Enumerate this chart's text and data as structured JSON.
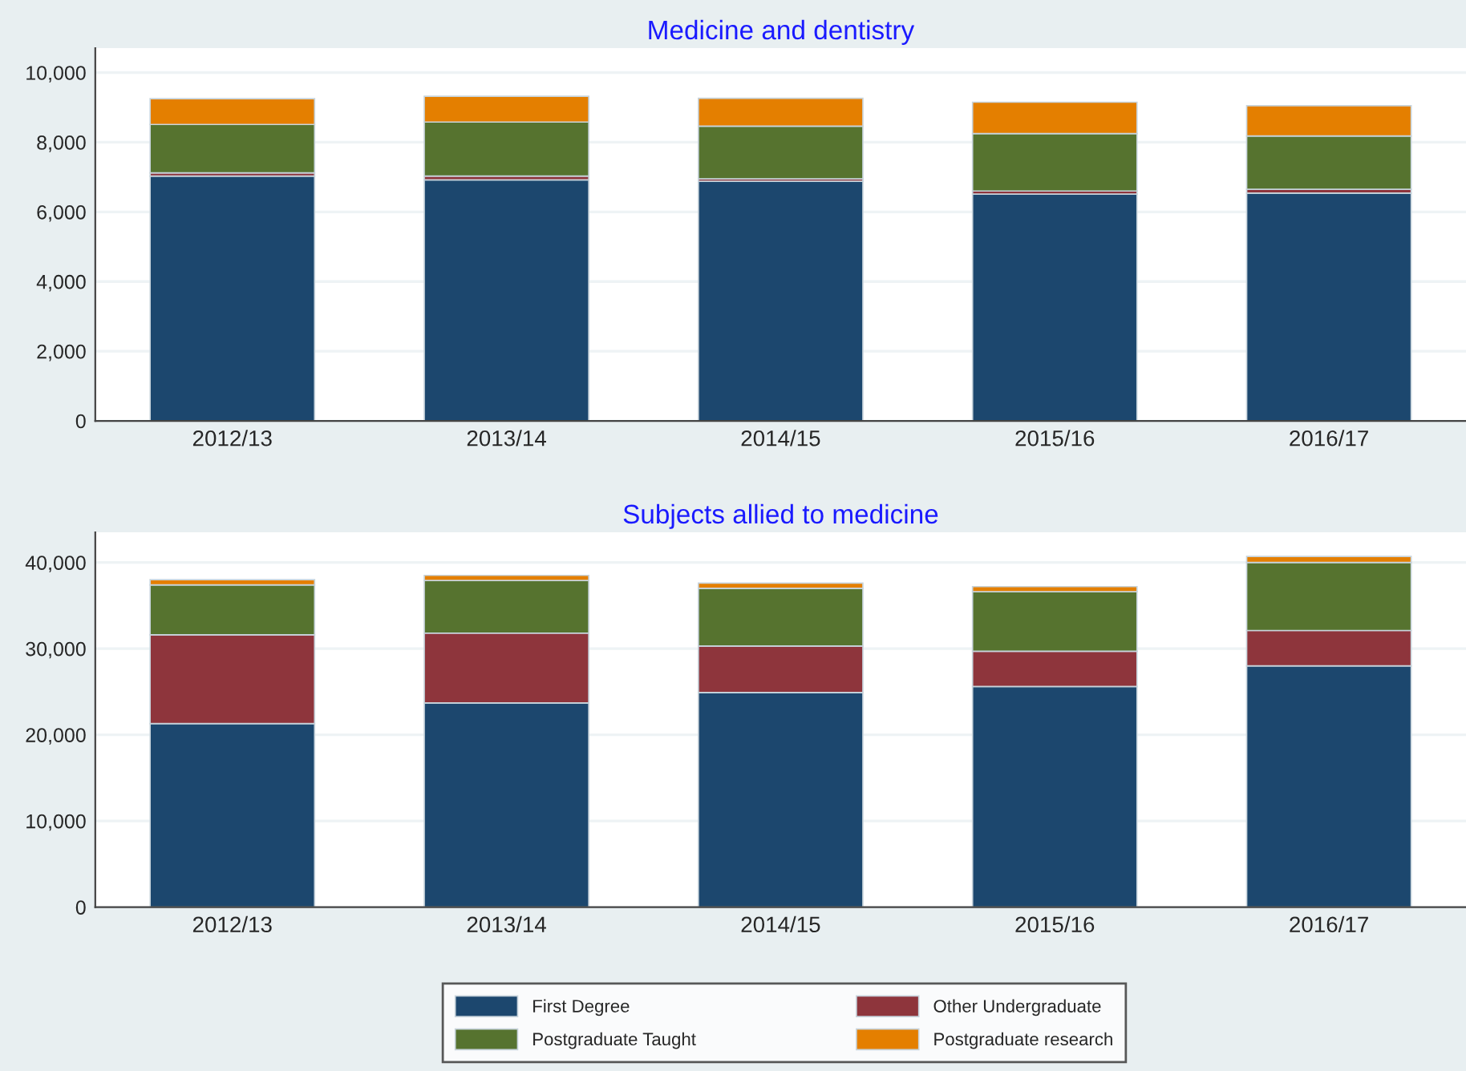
{
  "chart_data": [
    {
      "type": "bar",
      "title": "Medicine and dentistry",
      "stacked": true,
      "categories": [
        "2012/13",
        "2013/14",
        "2014/15",
        "2015/16",
        "2016/17"
      ],
      "ylim": [
        0,
        10700
      ],
      "yticks": [
        {
          "value": 0,
          "label": "0"
        },
        {
          "value": 2000,
          "label": "2,000"
        },
        {
          "value": 4000,
          "label": "4,000"
        },
        {
          "value": 6000,
          "label": "6,000"
        },
        {
          "value": 8000,
          "label": "8,000"
        },
        {
          "value": 10000,
          "label": "10,000"
        }
      ],
      "grid": "y",
      "legend": "bottom",
      "series": [
        {
          "name": "First Degree",
          "color": "#1c476e",
          "values": [
            7030,
            6920,
            6880,
            6510,
            6540
          ]
        },
        {
          "name": "Other Undergraduate",
          "color": "#8e353c",
          "values": [
            90,
            110,
            70,
            90,
            110
          ]
        },
        {
          "name": "Postgraduate Taught",
          "color": "#56732f",
          "values": [
            1390,
            1550,
            1510,
            1650,
            1530
          ]
        },
        {
          "name": "Postgraduate research",
          "color": "#e47f00",
          "values": [
            740,
            740,
            800,
            900,
            870
          ]
        }
      ]
    },
    {
      "type": "bar",
      "title": "Subjects allied to medicine",
      "stacked": true,
      "categories": [
        "2012/13",
        "2013/14",
        "2014/15",
        "2015/16",
        "2016/17"
      ],
      "ylim": [
        0,
        43500
      ],
      "yticks": [
        {
          "value": 0,
          "label": "0"
        },
        {
          "value": 10000,
          "label": "10,000"
        },
        {
          "value": 20000,
          "label": "20,000"
        },
        {
          "value": 30000,
          "label": "30,000"
        },
        {
          "value": 40000,
          "label": "40,000"
        }
      ],
      "grid": "y",
      "legend": false,
      "series": [
        {
          "color": "#1c476e",
          "values": [
            21300,
            23700,
            24900,
            25600,
            28000
          ]
        },
        {
          "color": "#8e353c",
          "values": [
            10300,
            8100,
            5400,
            4100,
            4100
          ]
        },
        {
          "color": "#56732f",
          "values": [
            5800,
            6100,
            6700,
            6900,
            7900
          ]
        },
        {
          "color": "#e47f00",
          "values": [
            600,
            600,
            600,
            600,
            700
          ]
        }
      ]
    }
  ]
}
